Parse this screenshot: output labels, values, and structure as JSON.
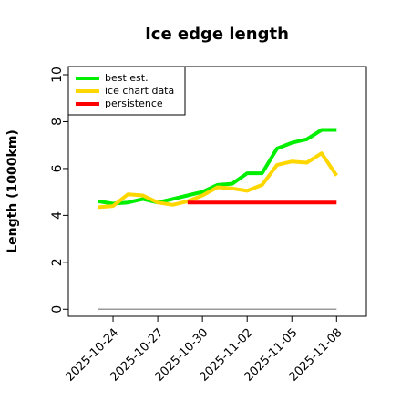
{
  "chart_data": {
    "type": "line",
    "title": "Ice edge length",
    "y_label": "Length (1000km)",
    "x": [
      "2025-10-23",
      "2025-10-24",
      "2025-10-25",
      "2025-10-26",
      "2025-10-27",
      "2025-10-28",
      "2025-10-29",
      "2025-10-30",
      "2025-10-31",
      "2025-11-01",
      "2025-11-02",
      "2025-11-03",
      "2025-11-04",
      "2025-11-05",
      "2025-11-06",
      "2025-11-07",
      "2025-11-08"
    ],
    "series": [
      {
        "color": "#999999",
        "values": [
          0,
          0,
          0,
          0,
          0,
          0,
          0,
          0,
          0,
          0,
          0,
          0,
          0,
          0,
          0,
          0,
          0
        ]
      },
      {
        "name": "best est.",
        "color": "#00ee00",
        "values": [
          4.6,
          4.5,
          4.55,
          4.7,
          4.55,
          4.7,
          4.85,
          5.0,
          5.3,
          5.35,
          5.8,
          5.8,
          6.85,
          7.1,
          7.25,
          7.65,
          7.65
        ]
      },
      {
        "name": "ice chart data",
        "color": "#ffd700",
        "values": [
          4.35,
          4.4,
          4.9,
          4.85,
          4.55,
          4.45,
          4.6,
          4.85,
          5.2,
          5.15,
          5.05,
          5.3,
          6.15,
          6.3,
          6.25,
          6.65,
          5.7
        ]
      },
      {
        "name": "persistence",
        "color": "#ff0000",
        "values": [
          null,
          null,
          null,
          null,
          null,
          null,
          4.55,
          4.55,
          4.55,
          4.55,
          4.55,
          4.55,
          4.55,
          4.55,
          4.55,
          4.55,
          4.55
        ]
      }
    ],
    "xlim": [
      "2025-10-21",
      "2025-11-10"
    ],
    "xticks": [
      "2025-10-24",
      "2025-10-27",
      "2025-10-30",
      "2025-11-02",
      "2025-11-05",
      "2025-11-08"
    ],
    "ylim": [
      -0.3,
      10.35
    ],
    "yticks": [
      0,
      2,
      4,
      6,
      8,
      10
    ],
    "legend": "top-left"
  }
}
